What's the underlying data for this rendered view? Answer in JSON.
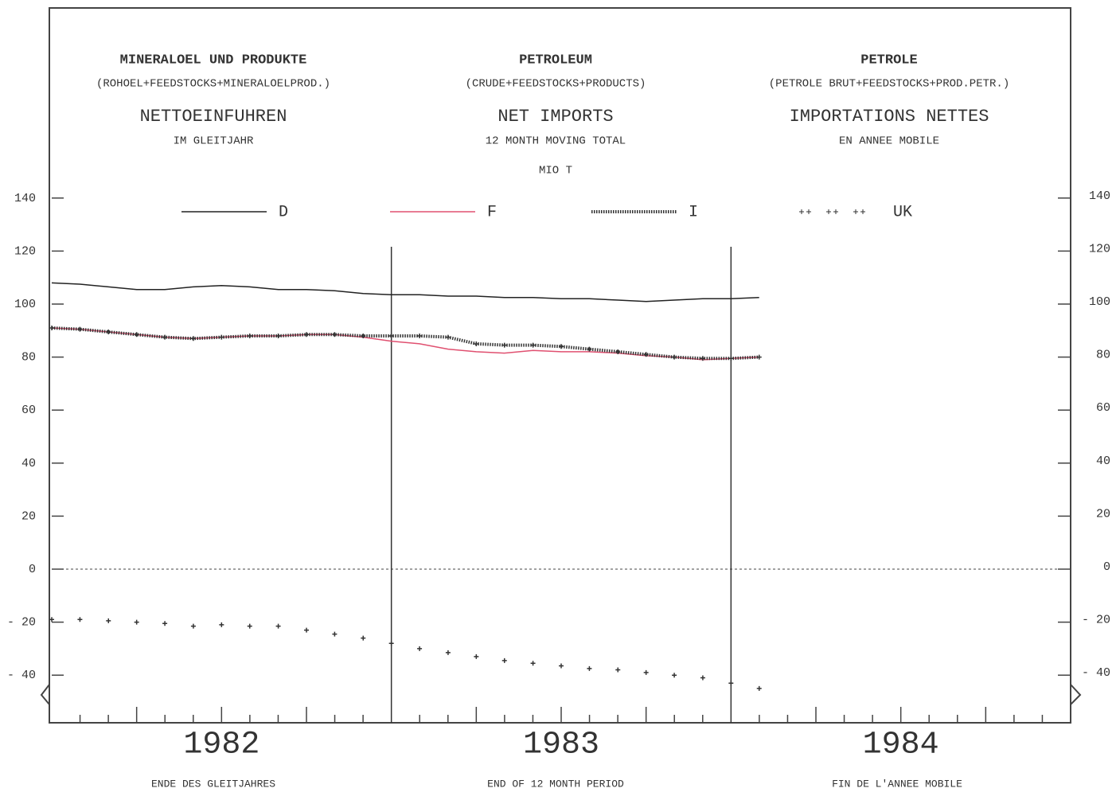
{
  "chart_data": {
    "type": "line",
    "title_blocks": [
      {
        "lines": [
          "MINERALOEL UND PRODUKTE",
          "(ROHOEL+FEEDSTOCKS+MINERALOELPROD.)",
          "NETTOEINFUHREN",
          "IM GLEITJAHR"
        ]
      },
      {
        "lines": [
          "PETROLEUM",
          "(CRUDE+FEEDSTOCKS+PRODUCTS)",
          "NET IMPORTS",
          "12 MONTH MOVING TOTAL"
        ]
      },
      {
        "lines": [
          "PETROLE",
          "(PETROLE BRUT+FEEDSTOCKS+PROD.PETR.)",
          "IMPORTATIONS NETTES",
          "EN ANNEE MOBILE"
        ]
      }
    ],
    "unit": "MIO T",
    "x_captions": [
      "ENDE DES GLEITJAHRES",
      "END OF 12 MONTH PERIOD",
      "FIN DE L'ANNEE MOBILE"
    ],
    "x": [
      1982,
      1982.083,
      1982.167,
      1982.25,
      1982.333,
      1982.417,
      1982.5,
      1982.583,
      1982.667,
      1982.75,
      1982.833,
      1982.917,
      1983,
      1983.083,
      1983.167,
      1983.25,
      1983.333,
      1983.417,
      1983.5,
      1983.583,
      1983.667,
      1983.75,
      1983.833,
      1983.917,
      1984,
      1984.083
    ],
    "series": [
      {
        "name": "D",
        "color": "#222222",
        "style": "solid",
        "values": [
          108,
          107.5,
          106.5,
          105.5,
          105.5,
          106.5,
          107,
          106.5,
          105.5,
          105.5,
          105,
          104,
          103.5,
          103.5,
          103,
          103,
          102.5,
          102.5,
          102,
          102,
          101.5,
          101,
          101.5,
          102,
          102,
          102.5
        ]
      },
      {
        "name": "F",
        "color": "#e05070",
        "style": "solid",
        "values": [
          91,
          90.5,
          89.5,
          88.5,
          87.5,
          87,
          87.5,
          88,
          88,
          88.5,
          88.5,
          87.5,
          86,
          85,
          83,
          82,
          81.5,
          82.5,
          82,
          82,
          81.5,
          80.5,
          80,
          79,
          79.5,
          80
        ]
      },
      {
        "name": "I",
        "color": "#333333",
        "style": "dotted",
        "values": [
          91,
          90.5,
          89.5,
          88.5,
          87.5,
          87,
          87.5,
          88,
          88,
          88.5,
          88.5,
          88,
          88,
          88,
          87.5,
          85,
          84.5,
          84.5,
          84,
          83,
          82,
          81,
          80,
          79.5,
          79.5,
          80
        ]
      },
      {
        "name": "UK",
        "color": "#333333",
        "style": "markers",
        "values": [
          -19,
          -19,
          -19.5,
          -20,
          -20.5,
          -21.5,
          -21,
          -21.5,
          -21.5,
          -23,
          -24.5,
          -26,
          -28,
          -30,
          -31.5,
          -33,
          -34.5,
          -35.5,
          -36.5,
          -37.5,
          -38,
          -39,
          -40,
          -41,
          -43,
          -45
        ]
      }
    ],
    "xlim": [
      1982,
      1985
    ],
    "xticks": [
      {
        "value": 1982.5,
        "label": "1982"
      },
      {
        "value": 1983.5,
        "label": "1983"
      },
      {
        "value": 1984.5,
        "label": "1984"
      }
    ],
    "ylim": [
      -50,
      150
    ],
    "yticks": [
      {
        "value": -40,
        "label": "- 40"
      },
      {
        "value": -20,
        "label": "- 20"
      },
      0,
      20,
      40,
      60,
      80,
      100,
      120,
      140
    ]
  }
}
